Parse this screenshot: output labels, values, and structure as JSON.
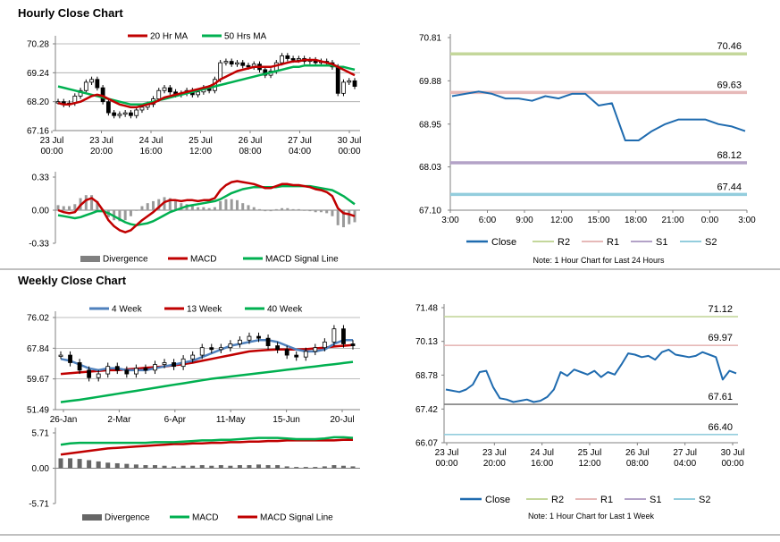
{
  "colors": {
    "red": "#C00000",
    "green": "#00B050",
    "blue": "#4F81BD",
    "gray": "#808080",
    "close": "#1F6BAF",
    "r2": "#C4D79B",
    "r1": "#E6B9B8",
    "s1": "#B3A2C7",
    "s2": "#93CDDD"
  },
  "sections": {
    "hourly_title": "Hourly Close Chart",
    "weekly_title": "Weekly Close Chart"
  },
  "chart_data": [
    {
      "id": "hourly_price",
      "type": "candlestick",
      "title": "Hourly Close Chart",
      "legend": [
        "20 Hr MA",
        "50 Hrs MA"
      ],
      "y_ticks": [
        "70.28",
        "69.24",
        "68.20",
        "67.16"
      ],
      "y_tick_values": [
        70.28,
        69.24,
        68.2,
        67.16
      ],
      "ylim": [
        67.16,
        70.28
      ],
      "x_ticks": [
        "23 Jul\n00:00",
        "23 Jul\n20:00",
        "24 Jul\n16:00",
        "25 Jul\n12:00",
        "26 Jul\n08:00",
        "27 Jul\n04:00",
        "30 Jul\n00:00"
      ],
      "close": [
        68.2,
        68.1,
        68.15,
        68.4,
        68.6,
        68.9,
        69.0,
        68.7,
        68.2,
        67.8,
        67.7,
        67.75,
        67.8,
        67.7,
        67.9,
        68.0,
        68.1,
        68.3,
        68.6,
        68.7,
        68.55,
        68.45,
        68.5,
        68.6,
        68.45,
        68.55,
        68.7,
        68.6,
        69.0,
        69.6,
        69.65,
        69.55,
        69.6,
        69.5,
        69.45,
        69.55,
        69.35,
        69.15,
        69.3,
        69.6,
        69.85,
        69.75,
        69.7,
        69.75,
        69.65,
        69.7,
        69.6,
        69.65,
        69.6,
        69.45,
        68.5,
        68.9,
        68.95,
        68.75
      ],
      "ma20": [
        68.15,
        68.1,
        68.1,
        68.15,
        68.2,
        68.3,
        68.4,
        68.45,
        68.4,
        68.3,
        68.2,
        68.1,
        68.05,
        68.0,
        68.0,
        68.05,
        68.1,
        68.15,
        68.25,
        68.35,
        68.4,
        68.45,
        68.5,
        68.55,
        68.6,
        68.65,
        68.7,
        68.75,
        68.85,
        69.0,
        69.1,
        69.2,
        69.3,
        69.35,
        69.4,
        69.45,
        69.45,
        69.45,
        69.45,
        69.5,
        69.55,
        69.6,
        69.65,
        69.65,
        69.7,
        69.7,
        69.7,
        69.65,
        69.6,
        69.55,
        69.45,
        69.35,
        69.25,
        69.15
      ],
      "ma50": [
        68.75,
        68.7,
        68.65,
        68.6,
        68.55,
        68.5,
        68.45,
        68.4,
        68.35,
        68.3,
        68.25,
        68.2,
        68.15,
        68.1,
        68.1,
        68.1,
        68.15,
        68.2,
        68.25,
        68.3,
        68.35,
        68.4,
        68.45,
        68.5,
        68.55,
        68.6,
        68.65,
        68.7,
        68.75,
        68.8,
        68.85,
        68.9,
        68.95,
        69.0,
        69.05,
        69.1,
        69.15,
        69.2,
        69.25,
        69.3,
        69.35,
        69.4,
        69.45,
        69.45,
        69.5,
        69.5,
        69.5,
        69.5,
        69.5,
        69.5,
        69.45,
        69.45,
        69.4,
        69.35
      ]
    },
    {
      "id": "hourly_macd",
      "type": "macd",
      "legend": [
        "Divergence",
        "MACD",
        "MACD Signal Line"
      ],
      "y_ticks": [
        "0.33",
        "0.00",
        "-0.33"
      ],
      "y_tick_values": [
        0.33,
        0,
        -0.33
      ],
      "ylim": [
        -0.33,
        0.33
      ],
      "macd": [
        0.0,
        -0.02,
        -0.03,
        -0.02,
        0.05,
        0.1,
        0.12,
        0.08,
        0.0,
        -0.1,
        -0.16,
        -0.2,
        -0.22,
        -0.2,
        -0.15,
        -0.1,
        -0.06,
        -0.02,
        0.03,
        0.08,
        0.1,
        0.1,
        0.09,
        0.1,
        0.1,
        0.09,
        0.1,
        0.1,
        0.12,
        0.2,
        0.25,
        0.28,
        0.29,
        0.28,
        0.27,
        0.26,
        0.24,
        0.22,
        0.22,
        0.24,
        0.26,
        0.26,
        0.25,
        0.25,
        0.24,
        0.23,
        0.21,
        0.2,
        0.18,
        0.14,
        0.02,
        -0.03,
        -0.04,
        -0.06
      ],
      "signal": [
        -0.05,
        -0.06,
        -0.07,
        -0.08,
        -0.07,
        -0.05,
        -0.03,
        -0.01,
        -0.01,
        -0.03,
        -0.06,
        -0.09,
        -0.12,
        -0.14,
        -0.15,
        -0.14,
        -0.13,
        -0.11,
        -0.08,
        -0.05,
        -0.02,
        0.0,
        0.02,
        0.04,
        0.05,
        0.06,
        0.07,
        0.08,
        0.09,
        0.11,
        0.14,
        0.17,
        0.19,
        0.21,
        0.22,
        0.23,
        0.23,
        0.23,
        0.23,
        0.23,
        0.24,
        0.24,
        0.24,
        0.24,
        0.24,
        0.24,
        0.23,
        0.22,
        0.21,
        0.2,
        0.17,
        0.14,
        0.1,
        0.06
      ]
    },
    {
      "id": "hourly_levels",
      "type": "line",
      "note": "Note: 1 Hour Chart for Last 24 Hours",
      "legend": [
        "Close",
        "R2",
        "R1",
        "S1",
        "S2"
      ],
      "y_ticks": [
        "70.81",
        "69.88",
        "68.95",
        "68.03",
        "67.10"
      ],
      "y_tick_values": [
        70.81,
        69.88,
        68.95,
        68.03,
        67.1
      ],
      "ylim": [
        67.1,
        70.81
      ],
      "x_ticks": [
        "3:00",
        "6:00",
        "9:00",
        "12:00",
        "15:00",
        "18:00",
        "21:00",
        "0:00",
        "3:00"
      ],
      "levels": {
        "R2": 70.46,
        "R1": 69.63,
        "S1": 68.12,
        "S2": 67.44
      },
      "level_labels": {
        "R2": "70.46",
        "R1": "69.63",
        "S1": "68.12",
        "S2": "67.44"
      },
      "close": [
        69.55,
        69.6,
        69.65,
        69.6,
        69.5,
        69.5,
        69.45,
        69.55,
        69.5,
        69.6,
        69.6,
        69.35,
        69.4,
        68.6,
        68.6,
        68.8,
        68.95,
        69.05,
        69.05,
        69.05,
        68.95,
        68.9,
        68.8
      ]
    },
    {
      "id": "weekly_price",
      "type": "candlestick",
      "title": "Weekly Close Chart",
      "legend": [
        "4 Week",
        "13 Week",
        "40 Week"
      ],
      "y_ticks": [
        "76.02",
        "67.84",
        "59.67",
        "51.49"
      ],
      "y_tick_values": [
        76.02,
        67.84,
        59.67,
        51.49
      ],
      "ylim": [
        51.49,
        76.02
      ],
      "x_ticks": [
        "26-Jan",
        "2-Mar",
        "6-Apr",
        "11-May",
        "15-Jun",
        "20-Jul"
      ],
      "close": [
        66,
        64,
        62,
        60,
        61,
        63,
        62,
        61,
        62.5,
        62,
        63.5,
        64,
        63,
        65,
        66,
        68,
        67.5,
        68,
        69,
        70,
        71,
        70.5,
        68.5,
        67.5,
        66,
        65.5,
        67,
        68,
        69.5,
        73,
        69,
        68.5
      ],
      "ma4": [
        65,
        64.5,
        63.5,
        62.5,
        62,
        62.5,
        62.5,
        62,
        62,
        62,
        62.5,
        63,
        63.5,
        64,
        64.5,
        65.5,
        66.5,
        67.5,
        68.5,
        69,
        69.5,
        70,
        70,
        69.5,
        68.5,
        67.5,
        67,
        67,
        67.5,
        69,
        70,
        70
      ],
      "ma13": [
        61,
        61.2,
        61.4,
        61.6,
        61.8,
        62,
        62,
        62.2,
        62.4,
        62.6,
        62.8,
        63,
        63.3,
        63.6,
        64,
        64.5,
        65,
        65.5,
        66,
        66.5,
        67,
        67.2,
        67.4,
        67.5,
        67.5,
        67.5,
        67.6,
        67.8,
        68,
        68.3,
        68.5,
        68.7
      ],
      "ma40": [
        53.5,
        53.8,
        54.1,
        54.5,
        54.9,
        55.3,
        55.7,
        56.1,
        56.5,
        56.9,
        57.3,
        57.7,
        58.1,
        58.5,
        58.9,
        59.3,
        59.7,
        60,
        60.3,
        60.6,
        60.9,
        61.2,
        61.5,
        61.8,
        62.1,
        62.4,
        62.7,
        63,
        63.3,
        63.6,
        63.9,
        64.2
      ]
    },
    {
      "id": "weekly_macd",
      "type": "macd",
      "legend": [
        "Divergence",
        "MACD",
        "MACD Signal Line"
      ],
      "y_ticks": [
        "5.71",
        "0.00",
        "-5.71"
      ],
      "y_tick_values": [
        5.71,
        0,
        -5.71
      ],
      "ylim": [
        -5.71,
        5.71
      ],
      "macd": [
        3.8,
        4,
        4.1,
        4.1,
        4.1,
        4.1,
        4.1,
        4.1,
        4.1,
        4.1,
        4.2,
        4.2,
        4.2,
        4.3,
        4.4,
        4.5,
        4.5,
        4.6,
        4.6,
        4.7,
        4.8,
        4.9,
        4.9,
        4.9,
        4.8,
        4.7,
        4.7,
        4.7,
        4.8,
        5,
        5,
        4.9
      ],
      "signal": [
        2.2,
        2.4,
        2.6,
        2.8,
        3,
        3.2,
        3.3,
        3.4,
        3.5,
        3.6,
        3.7,
        3.8,
        3.9,
        3.9,
        4,
        4,
        4.1,
        4.1,
        4.2,
        4.2,
        4.3,
        4.3,
        4.4,
        4.4,
        4.5,
        4.5,
        4.5,
        4.5,
        4.5,
        4.5,
        4.6,
        4.6
      ],
      "divergence": [
        1.6,
        1.6,
        1.5,
        1.3,
        1.1,
        0.9,
        0.8,
        0.7,
        0.6,
        0.5,
        0.5,
        0.4,
        0.3,
        0.4,
        0.4,
        0.5,
        0.4,
        0.5,
        0.4,
        0.5,
        0.5,
        0.6,
        0.5,
        0.5,
        0.3,
        0.2,
        0.2,
        0.2,
        0.3,
        0.5,
        0.4,
        0.3
      ]
    },
    {
      "id": "weekly_levels",
      "type": "line",
      "note": "Note: 1 Hour Chart for Last 1 Week",
      "legend": [
        "Close",
        "R2",
        "R1",
        "S1",
        "S2"
      ],
      "y_ticks": [
        "71.48",
        "70.13",
        "68.78",
        "67.42",
        "66.07"
      ],
      "y_tick_values": [
        71.48,
        70.13,
        68.78,
        67.42,
        66.07
      ],
      "ylim": [
        66.07,
        71.48
      ],
      "x_ticks": [
        "23 Jul\n00:00",
        "23 Jul\n20:00",
        "24 Jul\n16:00",
        "25 Jul\n12:00",
        "26 Jul\n08:00",
        "27 Jul\n04:00",
        "30 Jul\n00:00"
      ],
      "levels": {
        "R2": 71.12,
        "R1": 69.97,
        "S1": 67.61,
        "S2": 66.4
      },
      "level_labels": {
        "R2": "71.12",
        "R1": "69.97",
        "S1": "67.61",
        "S2": "66.40"
      },
      "close": [
        68.2,
        68.15,
        68.1,
        68.2,
        68.4,
        68.9,
        68.95,
        68.3,
        67.85,
        67.8,
        67.7,
        67.75,
        67.8,
        67.7,
        67.75,
        67.9,
        68.2,
        68.9,
        68.75,
        69,
        68.9,
        68.8,
        68.95,
        68.7,
        68.9,
        68.8,
        69.2,
        69.65,
        69.6,
        69.5,
        69.55,
        69.4,
        69.7,
        69.8,
        69.6,
        69.55,
        69.5,
        69.55,
        69.7,
        69.6,
        69.5,
        68.6,
        68.95,
        68.85
      ]
    }
  ]
}
